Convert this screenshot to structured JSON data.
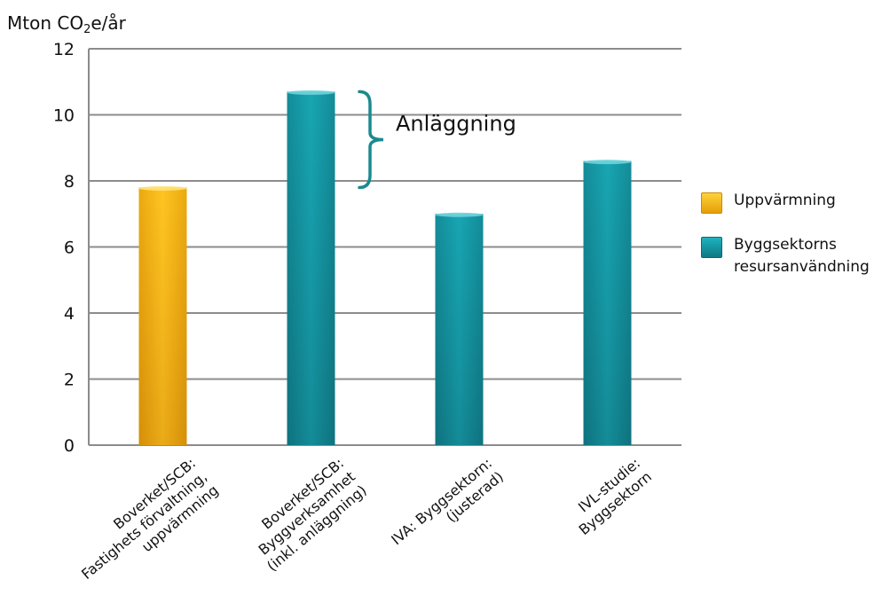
{
  "chart_data": {
    "type": "bar",
    "ylabel": {
      "prefix": "Mton CO",
      "sub": "2",
      "suffix": "e/år"
    },
    "ylim": [
      0,
      12
    ],
    "yticks": [
      "0",
      "2",
      "4",
      "6",
      "8",
      "10",
      "12"
    ],
    "grid": true,
    "legend_placement": "right",
    "categories": [
      [
        "Boverket/SCB:",
        "Fastighets förvaltning,",
        "uppvärmning"
      ],
      [
        "Boverket/SCB:",
        "Byggverksamhet",
        "(inkl. anläggning)"
      ],
      [
        "IVA: Byggsektorn:",
        "(justerad)"
      ],
      [
        "IVL-studie:",
        "Byggsektorn"
      ]
    ],
    "values": [
      7.8,
      10.7,
      7.0,
      8.6
    ],
    "bar_series": [
      0,
      1,
      1,
      1
    ],
    "series": [
      {
        "name": "Uppvärmning",
        "color": "#f7b500"
      },
      {
        "name": "Byggsektorns\nresursanvändning",
        "color": "#14929f"
      }
    ],
    "annotation": {
      "text": "Anläggning",
      "range": [
        7.8,
        10.7
      ],
      "color": "#1b8a8f"
    }
  }
}
